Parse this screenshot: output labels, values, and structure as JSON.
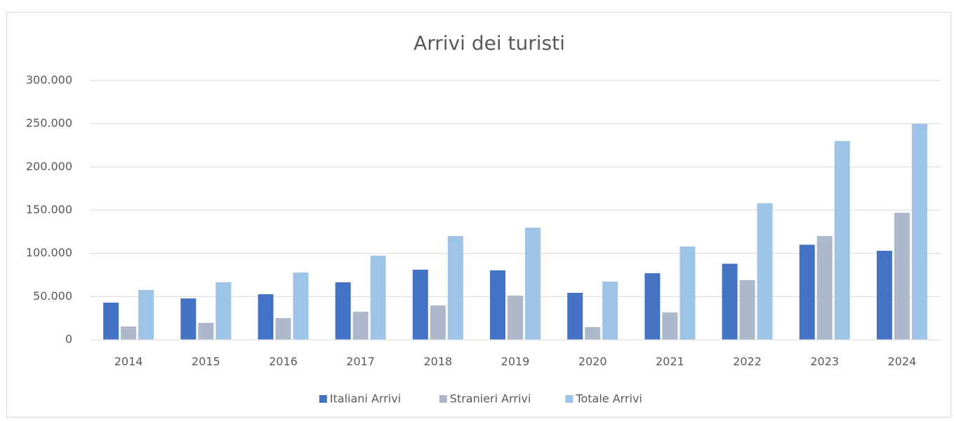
{
  "chart_data": {
    "type": "bar",
    "title": "Arrivi dei turisti",
    "categories": [
      "2014",
      "2015",
      "2016",
      "2017",
      "2018",
      "2019",
      "2020",
      "2021",
      "2022",
      "2023",
      "2024"
    ],
    "series": [
      {
        "name": "Italiani Arrivi",
        "color": "#4472c4",
        "values": [
          43000,
          47800,
          52700,
          66500,
          81100,
          80300,
          54300,
          77000,
          88000,
          110000,
          103000
        ]
      },
      {
        "name": "Stranieri Arrivi",
        "color": "#adb9ca",
        "values": [
          15400,
          19500,
          25100,
          32400,
          39700,
          51100,
          14600,
          31600,
          69000,
          120000,
          147000
        ]
      },
      {
        "name": "Totale Arrivi",
        "color": "#9dc3e6",
        "values": [
          57600,
          66500,
          77800,
          97300,
          120000,
          129700,
          67300,
          108000,
          158000,
          230000,
          250000
        ]
      }
    ],
    "ylim": [
      0,
      300000
    ],
    "yticks": [
      0,
      {
        "value": 50000,
        "label": "50.000"
      },
      {
        "value": 100000,
        "label": "100.000"
      },
      {
        "value": 150000,
        "label": "150.000"
      },
      {
        "value": 200000,
        "label": "200.000"
      },
      {
        "value": 250000,
        "label": "250.000"
      },
      {
        "value": 300000,
        "label": "300.000"
      }
    ],
    "grid": true,
    "legend": "bottom"
  }
}
